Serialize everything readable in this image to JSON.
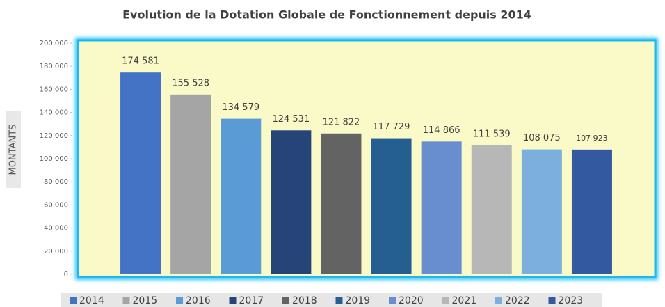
{
  "chart_data": {
    "type": "bar",
    "title": "Evolution de la Dotation Globale de Fonctionnement depuis 2014",
    "y_label": "MONTANTS",
    "categories": [
      "2014",
      "2015",
      "2016",
      "2017",
      "2018",
      "2019",
      "2020",
      "2021",
      "2022",
      "2023"
    ],
    "values": [
      174581,
      155528,
      134579,
      124531,
      121822,
      117729,
      114866,
      111539,
      108075,
      107923
    ],
    "value_labels": [
      "174 581",
      "155 528",
      "134 579",
      "124 531",
      "121 822",
      "117 729",
      "114 866",
      "111 539",
      "108 075",
      "107 923"
    ],
    "colors": [
      "#4472c4",
      "#a5a5a5",
      "#5b9bd5",
      "#264478",
      "#636363",
      "#255e91",
      "#698ed0",
      "#b7b7b7",
      "#7cafdd",
      "#335aa1"
    ],
    "ylim": [
      0,
      200000
    ],
    "yticks": [
      0,
      {
        "value": 20000,
        "label": "20 000"
      },
      {
        "value": 40000,
        "label": "40 000"
      },
      {
        "value": 60000,
        "label": "60 000"
      },
      {
        "value": 80000,
        "label": "80 000"
      },
      {
        "value": 100000,
        "label": "100 000"
      },
      {
        "value": 120000,
        "label": "120 000"
      },
      {
        "value": 140000,
        "label": "140 000"
      },
      {
        "value": 160000,
        "label": "160 000"
      },
      {
        "value": 180000,
        "label": "180 000"
      },
      {
        "value": 200000,
        "label": "200 000"
      }
    ],
    "legend": "bottom"
  }
}
